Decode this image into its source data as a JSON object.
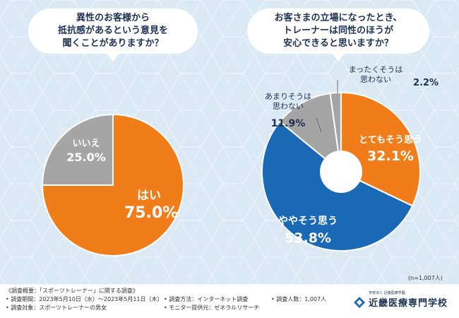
{
  "colors": {
    "orange": "#f07d1a",
    "blue": "#1a69b5",
    "gray": "#a5a5a5",
    "text_dark": "#1e3253"
  },
  "question1": {
    "lines": [
      "異性のお客様から",
      "抵抗感があるという意見を",
      "聞くことがありますか？"
    ]
  },
  "question2": {
    "lines": [
      "お客さまの立場になったとき、",
      "トレーナーは同性のほうが",
      "安心できると思いますか？"
    ]
  },
  "chart_data": [
    {
      "type": "pie",
      "title": "異性のお客様から抵抗感があるという意見を聞くことがありますか？",
      "slices": [
        {
          "label": "はい",
          "value": 75.0,
          "display": "75.0%",
          "color": "#f07d1a"
        },
        {
          "label": "いいえ",
          "value": 25.0,
          "display": "25.0%",
          "color": "#a5a5a5"
        }
      ]
    },
    {
      "type": "donut",
      "title": "お客さまの立場になったとき、トレーナーは同性のほうが安心できると思いますか？",
      "slices": [
        {
          "label": "とてもそう思う",
          "value": 32.1,
          "display": "32.1%",
          "color": "#f07d1a"
        },
        {
          "label": "ややそう思う",
          "value": 53.8,
          "display": "53.8%",
          "color": "#1a69b5"
        },
        {
          "label": "あまりそうは思わない",
          "value": 11.9,
          "display": "11.9%",
          "color": "#a5a5a5"
        },
        {
          "label": "まったくそうは思わない",
          "value": 2.2,
          "display": "2.2%",
          "color": "#a5a5a5"
        }
      ],
      "n_label": "(n=1,007人)"
    }
  ],
  "labels": {
    "hai": "はい",
    "hai_pct": "75.0%",
    "iie": "いいえ",
    "iie_pct": "25.0%",
    "totemo": "とてもそう思う",
    "totemo_pct": "32.1%",
    "yaya": "ややそう思う",
    "yaya_pct": "53.8%",
    "amari_1": "あまりそうは",
    "amari_2": "思わない",
    "amari_pct": "11.9%",
    "mattaku_1": "まったくそうは",
    "mattaku_2": "思わない",
    "mattaku_pct": "2.2%",
    "n": "(n=1,007人)"
  },
  "footer": {
    "overview": "《調査概要：「スポーツトレーナー」に関する調査》",
    "period": "• 調査期間：2023年5月10日（水）～2023年5月11日（木）",
    "target": "• 調査対象：スポーツトレーナーの男女",
    "method": "• 調査方法：インターネット調査",
    "provider": "• モニター提供元：ゼネラルリサーチ",
    "count": "• 調査人数：1,007人",
    "logo_small": "学校法人 近畿医療学園",
    "logo_name": "近畿医療専門学校"
  }
}
